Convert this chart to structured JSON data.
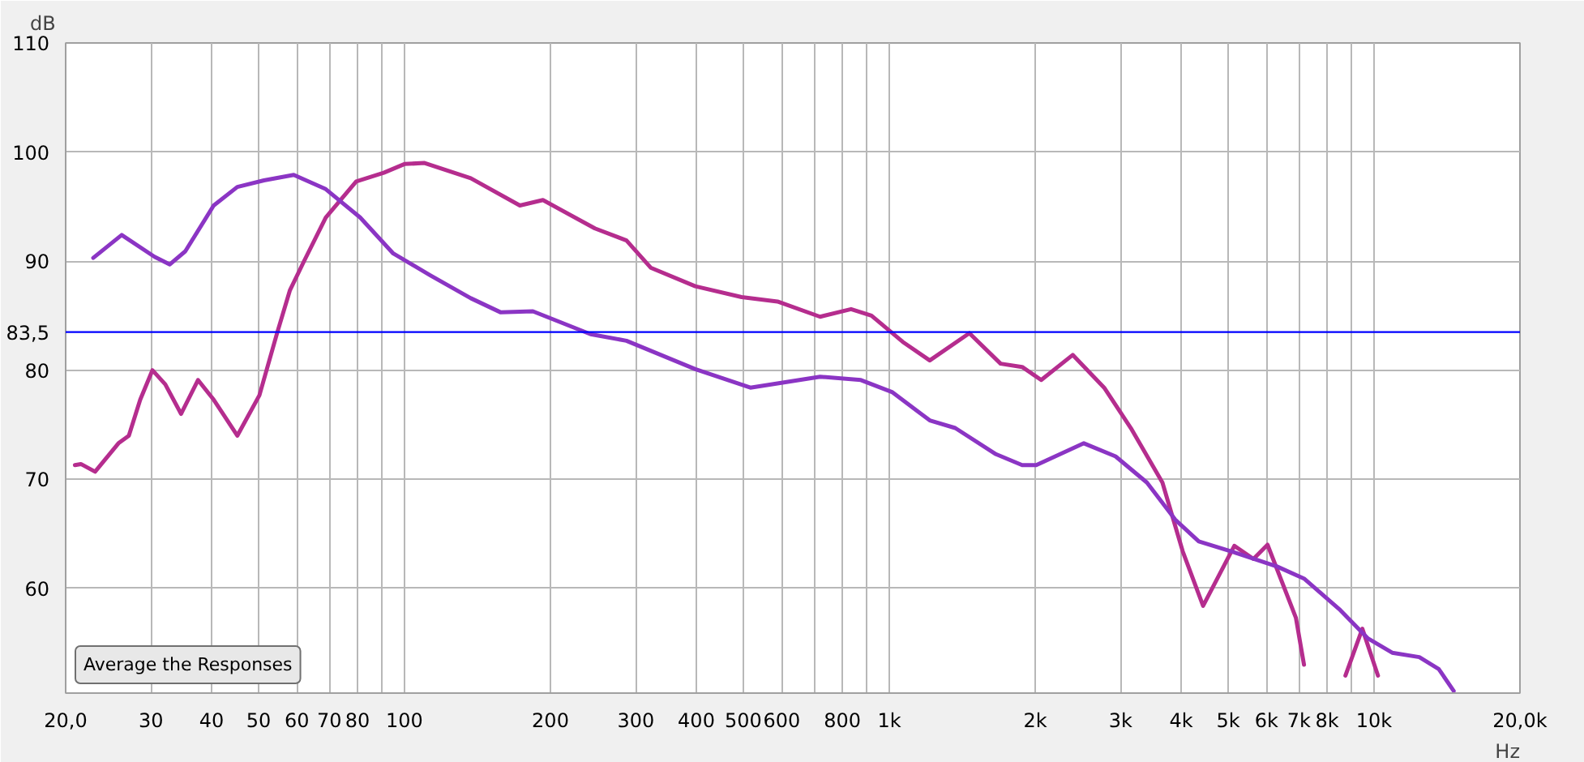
{
  "chart_data": {
    "type": "line",
    "ylabel": "dB",
    "xlabel": "Hz",
    "log": "x",
    "grid": true,
    "marker": "none",
    "line_style": "solid",
    "xlim": [
      20,
      20000
    ],
    "ylim": [
      50.4,
      110
    ],
    "xticks": [
      {
        "value": 20,
        "label": "20,0"
      },
      30,
      40,
      50,
      60,
      70,
      80,
      {
        "value": 90,
        "label": null
      },
      100,
      200,
      300,
      400,
      500,
      600,
      {
        "value": 700,
        "label": null
      },
      800,
      {
        "value": 900,
        "label": null
      },
      {
        "value": 1000,
        "label": "1k"
      },
      {
        "value": 2000,
        "label": "2k"
      },
      {
        "value": 3000,
        "label": "3k"
      },
      {
        "value": 4000,
        "label": "4k"
      },
      {
        "value": 5000,
        "label": "5k"
      },
      {
        "value": 6000,
        "label": "6k"
      },
      {
        "value": 7000,
        "label": "7k"
      },
      {
        "value": 8000,
        "label": "8k"
      },
      {
        "value": 9000,
        "label": null
      },
      {
        "value": 10000,
        "label": "10k"
      },
      {
        "value": 20000,
        "label": "20,0k"
      }
    ],
    "yticks": [
      60,
      70,
      80,
      90,
      100,
      110
    ],
    "ref_lines": [
      {
        "axis": "y",
        "value": 83.5,
        "label": "83,5",
        "color": "#0000ff"
      }
    ],
    "annotations": [
      "Average the Responses"
    ],
    "series": [
      {
        "color": "#b52d8e",
        "x": [
          20.9,
          21.5,
          23.0,
          25.7,
          27.0,
          28.5,
          30.2,
          32.1,
          34.6,
          37.5,
          40.4,
          45.2,
          50.2,
          54.6,
          58.0,
          61.9,
          68.8,
          79.5,
          90.6,
          100,
          110,
          137,
          173,
          193,
          247,
          287,
          322,
          398,
          496,
          588,
          720,
          834,
          919,
          1066,
          1212,
          1463,
          1697,
          1880,
          2058,
          2390,
          2775,
          3150,
          3660,
          4030,
          4440,
          5150,
          5640,
          6030,
          6900,
          7170,
          7800,
          8730,
          9460,
          10190
        ],
        "values": [
          71.3,
          71.4,
          70.7,
          73.3,
          74,
          77.3,
          80.0,
          78.7,
          76,
          79.1,
          77.3,
          74,
          77.7,
          83.4,
          87.3,
          89.9,
          94,
          97.3,
          98.1,
          98.9,
          99,
          97.6,
          95.1,
          95.6,
          93,
          91.9,
          89.4,
          87.7,
          86.7,
          86.3,
          84.9,
          85.6,
          85,
          82.6,
          80.9,
          83.4,
          80.6,
          80.3,
          79.1,
          81.4,
          78.4,
          74.7,
          69.7,
          63.4,
          58.4,
          63.9,
          62.7,
          64,
          57.3,
          53,
          null,
          52,
          56.3,
          52
        ]
      },
      {
        "color": "#8b35c4",
        "x": [
          22.8,
          26.1,
          30.5,
          32.8,
          35.3,
          40.4,
          45.2,
          51.3,
          59.1,
          68.8,
          81,
          94.8,
          113,
          137,
          158,
          184,
          242,
          287,
          398,
          517,
          720,
          874,
          1013,
          1212,
          1368,
          1660,
          1880,
          2010,
          2520,
          2930,
          3400,
          3890,
          4350,
          5150,
          6310,
          7170,
          8520,
          9720,
          10900,
          12400,
          13600,
          14600
        ],
        "values": [
          90.3,
          92.4,
          90.4,
          89.7,
          90.9,
          95.1,
          96.8,
          97.4,
          97.9,
          96.6,
          94,
          90.7,
          88.7,
          86.6,
          85.3,
          85.4,
          83.3,
          82.7,
          80.1,
          78.4,
          79.4,
          79.1,
          78,
          75.4,
          74.7,
          72.3,
          71.3,
          71.3,
          73.3,
          72.1,
          69.7,
          66.3,
          64.3,
          63.3,
          62,
          60.9,
          58,
          55.4,
          54.1,
          53.7,
          52.6,
          50.6
        ]
      }
    ]
  }
}
